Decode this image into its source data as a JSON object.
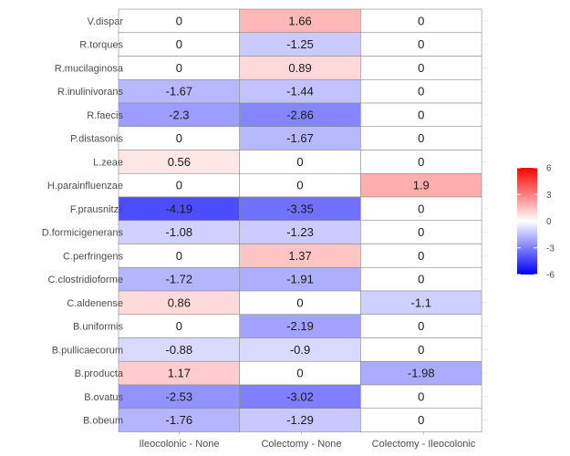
{
  "chart_data": {
    "type": "heatmap",
    "rows": [
      "V.dispar",
      "R.torques",
      "R.mucilaginosa",
      "R.inulinivorans",
      "R.faecis",
      "P.distasonis",
      "L.zeae",
      "H.parainfluenzae",
      "F.prausnitzii",
      "D.formicigenerans",
      "C.perfringens",
      "C.clostridioforme",
      "C.aldenense",
      "B.uniformis",
      "B.pullicaecorum",
      "B.producta",
      "B.ovatus",
      "B.obeum"
    ],
    "columns": [
      "Ileocolonic - None",
      "Colectomy - None",
      "Colectomy - Ileocolonic"
    ],
    "values": [
      [
        0,
        1.66,
        0
      ],
      [
        0,
        -1.25,
        0
      ],
      [
        0,
        0.89,
        0
      ],
      [
        -1.67,
        -1.44,
        0
      ],
      [
        -2.3,
        -2.86,
        0
      ],
      [
        0,
        -1.67,
        0
      ],
      [
        0.56,
        0,
        0
      ],
      [
        0,
        0,
        1.9
      ],
      [
        -4.19,
        -3.35,
        0
      ],
      [
        -1.08,
        -1.23,
        0
      ],
      [
        0,
        1.37,
        0
      ],
      [
        -1.72,
        -1.91,
        0
      ],
      [
        0.86,
        0,
        -1.1
      ],
      [
        0,
        -2.19,
        0
      ],
      [
        -0.88,
        -0.9,
        0
      ],
      [
        1.17,
        0,
        -1.98
      ],
      [
        -2.53,
        -3.02,
        0
      ],
      [
        -1.76,
        -1.29,
        0
      ]
    ],
    "color_scale": {
      "min": -6,
      "max": 6,
      "low": "#0000ff",
      "mid": "#ffffff",
      "high": "#ff0000"
    },
    "legend_ticks": [
      "6",
      "3",
      "0",
      "-3",
      "-6"
    ],
    "legend_values": [
      6,
      3,
      0,
      -3,
      -6
    ],
    "legend_placement": "right",
    "grid": true,
    "title": "",
    "xlabel": "",
    "ylabel": ""
  }
}
